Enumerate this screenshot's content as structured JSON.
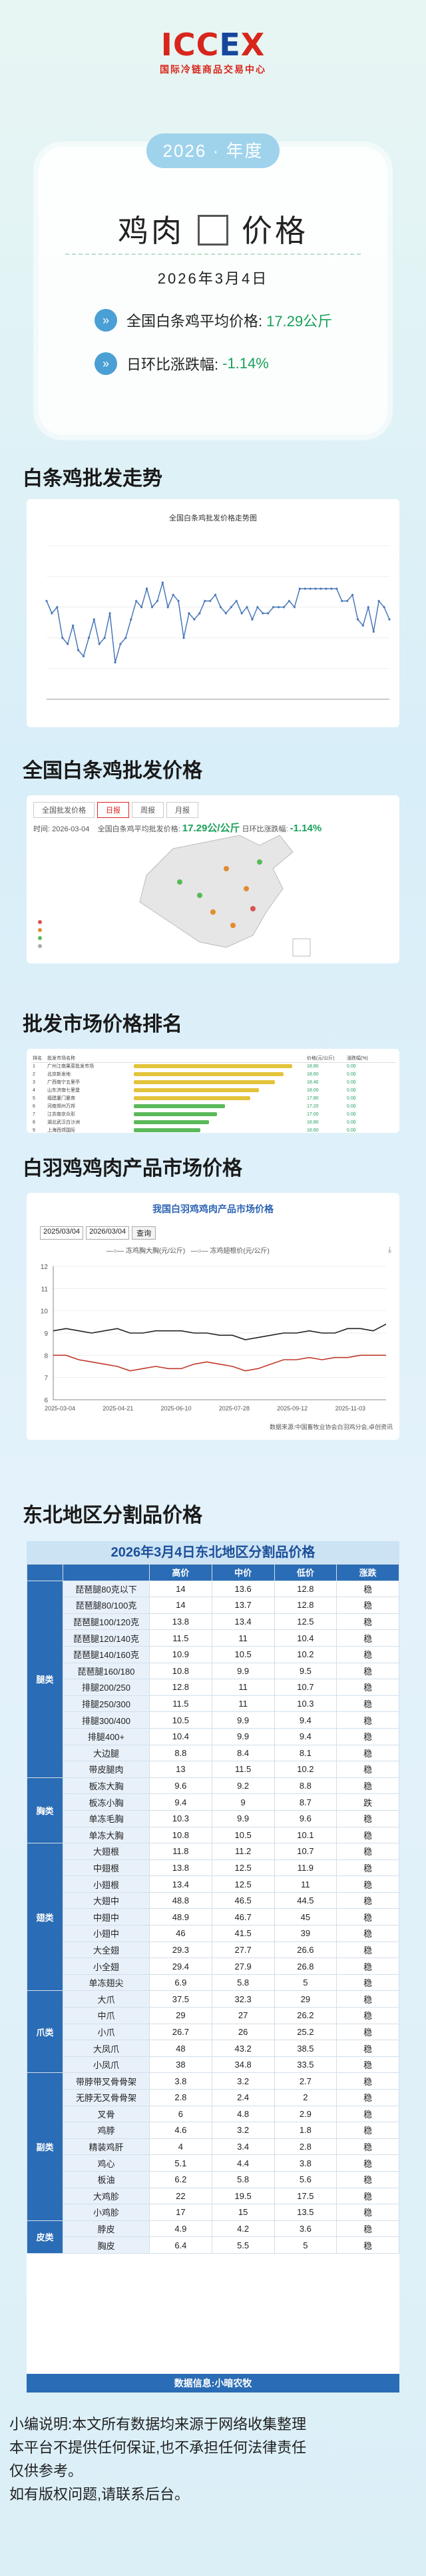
{
  "logo": {
    "mark_a": "ICC",
    "mark_b": "E",
    "mark_c": "X",
    "sub": "国际冷链商品交易中心"
  },
  "hero": {
    "year_label": "2026 · 年度",
    "title_left": "鸡肉",
    "title_right": "价格",
    "date": "2026年3月4日",
    "row1_label": "全国白条鸡平均价格:",
    "row1_value": "17.29公斤",
    "row2_label": "日环比涨跌幅:",
    "row2_value": "-1.14%"
  },
  "sections": {
    "s1": "白条鸡批发走势",
    "s2": "全国白条鸡批发价格",
    "s3": "批发市场价格排名",
    "s4": "白羽鸡鸡肉产品市场价格",
    "s5": "东北地区分割品价格"
  },
  "chart1": {
    "title": "全国白条鸡批发价格走势图",
    "chart_data": {
      "type": "line",
      "title": "全国白条鸡批发价格走势图",
      "values": [
        17.6,
        17.4,
        17.5,
        17.0,
        16.9,
        17.2,
        16.8,
        16.7,
        17.0,
        17.3,
        16.9,
        17.0,
        17.4,
        16.6,
        16.9,
        17.0,
        17.3,
        17.6,
        17.5,
        17.8,
        17.5,
        17.6,
        17.9,
        17.5,
        17.7,
        17.6,
        17.0,
        17.4,
        17.3,
        17.4,
        17.6,
        17.6,
        17.7,
        17.5,
        17.4,
        17.5,
        17.6,
        17.4,
        17.5,
        17.3,
        17.5,
        17.4,
        17.4,
        17.5,
        17.5,
        17.5,
        17.6,
        17.5,
        17.8,
        17.8,
        17.8,
        17.8,
        17.8,
        17.8,
        17.8,
        17.8,
        17.6,
        17.6,
        17.7,
        17.3,
        17.2,
        17.5,
        17.1,
        17.6,
        17.5,
        17.3
      ]
    }
  },
  "map": {
    "tabs": [
      "全国批发价格",
      "日报",
      "周报",
      "月报"
    ],
    "date_label": "时间:",
    "date": "2026-03-04",
    "avg_label": "全国白条鸡平均批发价格:",
    "avg": "17.29公/公斤",
    "chg_label": "日环比涨跌幅:",
    "chg": "-1.14%"
  },
  "rank": {
    "headers": [
      "排名",
      "批发市场名称",
      "",
      "价格(元/公斤)",
      "涨跌幅(%)"
    ],
    "rows": [
      [
        "1",
        "广州江南果菜批发市场",
        "18.80",
        "0.00"
      ],
      [
        "2",
        "北京新发地",
        "18.60",
        "0.00"
      ],
      [
        "3",
        "广西南宁五里亭",
        "18.40",
        "0.00"
      ],
      [
        "4",
        "山东济南七里堡",
        "18.00",
        "0.00"
      ],
      [
        "5",
        "福建厦门夏商",
        "17.80",
        "0.00"
      ],
      [
        "6",
        "河南郑州万邦",
        "17.20",
        "0.00"
      ],
      [
        "7",
        "江苏南京众彩",
        "17.00",
        "0.00"
      ],
      [
        "8",
        "湖北武汉白沙洲",
        "16.80",
        "0.00"
      ],
      [
        "9",
        "上海西郊国际",
        "16.60",
        "0.00"
      ]
    ]
  },
  "chart2": {
    "title": "我国白羽鸡鸡肉产品市场价格",
    "date_from": "2025/03/04",
    "date_to": "2026/03/04",
    "query": "查询",
    "legend_a": "冻鸡胸大胸(元/公斤)",
    "legend_b": "冻鸡翅根价(元/公斤)",
    "source": "数据来源:中国畜牧业协会白羽鸡分会,卓创资讯",
    "chart_data": {
      "type": "line",
      "x_ticks": [
        "2025-03-04",
        "2025-04-21",
        "2025-06-10",
        "2025-07-28",
        "2025-09-12",
        "2025-11-03"
      ],
      "ylim": [
        6,
        12
      ],
      "y_ticks": [
        "6",
        "7",
        "8",
        "9",
        "10",
        "11",
        "12"
      ],
      "series": [
        {
          "name": "冻鸡胸大胸(元/公斤)",
          "values": [
            9.1,
            9.2,
            9.1,
            9.0,
            9.1,
            9.2,
            9.0,
            9.0,
            9.1,
            9.1,
            9.1,
            9.0,
            9.0,
            8.9,
            8.9,
            8.7,
            8.8,
            8.9,
            9.0,
            9.0,
            9.1,
            9.0,
            9.0,
            9.2,
            9.2,
            9.1,
            9.4
          ]
        },
        {
          "name": "冻鸡翅根价(元/公斤)",
          "values": [
            8.0,
            8.0,
            7.8,
            7.7,
            7.6,
            7.5,
            7.3,
            7.4,
            7.5,
            7.4,
            7.4,
            7.6,
            7.7,
            7.6,
            7.5,
            7.3,
            7.4,
            7.6,
            7.8,
            7.8,
            7.9,
            7.8,
            7.9,
            7.9,
            8.0,
            8.0,
            8.0
          ]
        }
      ]
    }
  },
  "table": {
    "title": "2026年3月4日东北地区分割品价格",
    "headers": [
      "",
      "",
      "高价",
      "中价",
      "低价",
      "涨跌"
    ],
    "groups": [
      {
        "cat": "腿类",
        "rows": [
          [
            "琵琶腿80克以下",
            "14",
            "13.6",
            "12.8",
            "稳"
          ],
          [
            "琵琶腿80/100克",
            "14",
            "13.7",
            "12.8",
            "稳"
          ],
          [
            "琵琶腿100/120克",
            "13.8",
            "13.4",
            "12.5",
            "稳"
          ],
          [
            "琵琶腿120/140克",
            "11.5",
            "11",
            "10.4",
            "稳"
          ],
          [
            "琵琶腿140/160克",
            "10.9",
            "10.5",
            "10.2",
            "稳"
          ],
          [
            "琵琶腿160/180",
            "10.8",
            "9.9",
            "9.5",
            "稳"
          ],
          [
            "排腿200/250",
            "12.8",
            "11",
            "10.7",
            "稳"
          ],
          [
            "排腿250/300",
            "11.5",
            "11",
            "10.3",
            "稳"
          ],
          [
            "排腿300/400",
            "10.5",
            "9.9",
            "9.4",
            "稳"
          ],
          [
            "排腿400+",
            "10.4",
            "9.9",
            "9.4",
            "稳"
          ],
          [
            "大边腿",
            "8.8",
            "8.4",
            "8.1",
            "稳"
          ],
          [
            "带皮腿肉",
            "13",
            "11.5",
            "10.2",
            "稳"
          ]
        ]
      },
      {
        "cat": "胸类",
        "rows": [
          [
            "板冻大胸",
            "9.6",
            "9.2",
            "8.8",
            "稳"
          ],
          [
            "板冻小胸",
            "9.4",
            "9",
            "8.7",
            "跌"
          ],
          [
            "单冻毛胸",
            "10.3",
            "9.9",
            "9.6",
            "稳"
          ],
          [
            "单冻大胸",
            "10.8",
            "10.5",
            "10.1",
            "稳"
          ]
        ]
      },
      {
        "cat": "翅类",
        "rows": [
          [
            "大翅根",
            "11.8",
            "11.2",
            "10.7",
            "稳"
          ],
          [
            "中翅根",
            "13.8",
            "12.5",
            "11.9",
            "稳"
          ],
          [
            "小翅根",
            "13.4",
            "12.5",
            "11",
            "稳"
          ],
          [
            "大翅中",
            "48.8",
            "46.5",
            "44.5",
            "稳"
          ],
          [
            "中翅中",
            "48.9",
            "46.7",
            "45",
            "稳"
          ],
          [
            "小翅中",
            "46",
            "41.5",
            "39",
            "稳"
          ],
          [
            "大全翅",
            "29.3",
            "27.7",
            "26.6",
            "稳"
          ],
          [
            "小全翅",
            "29.4",
            "27.9",
            "26.8",
            "稳"
          ],
          [
            "单冻翅尖",
            "6.9",
            "5.8",
            "5",
            "稳"
          ]
        ]
      },
      {
        "cat": "爪类",
        "rows": [
          [
            "大爪",
            "37.5",
            "32.3",
            "29",
            "稳"
          ],
          [
            "中爪",
            "29",
            "27",
            "26.2",
            "稳"
          ],
          [
            "小爪",
            "26.7",
            "26",
            "25.2",
            "稳"
          ],
          [
            "大凤爪",
            "48",
            "43.2",
            "38.5",
            "稳"
          ],
          [
            "小凤爪",
            "38",
            "34.8",
            "33.5",
            "稳"
          ]
        ]
      },
      {
        "cat": "副类",
        "rows": [
          [
            "带脖带叉骨骨架",
            "3.8",
            "3.2",
            "2.7",
            "稳"
          ],
          [
            "无脖无叉骨骨架",
            "2.8",
            "2.4",
            "2",
            "稳"
          ],
          [
            "叉骨",
            "6",
            "4.8",
            "2.9",
            "稳"
          ],
          [
            "鸡脖",
            "4.6",
            "3.2",
            "1.8",
            "稳"
          ],
          [
            "精装鸡肝",
            "4",
            "3.4",
            "2.8",
            "稳"
          ],
          [
            "鸡心",
            "5.1",
            "4.4",
            "3.8",
            "稳"
          ],
          [
            "板油",
            "6.2",
            "5.8",
            "5.6",
            "稳"
          ],
          [
            "大鸡胗",
            "22",
            "19.5",
            "17.5",
            "稳"
          ],
          [
            "小鸡胗",
            "17",
            "15",
            "13.5",
            "稳"
          ]
        ]
      },
      {
        "cat": "皮类",
        "rows": [
          [
            "脖皮",
            "4.9",
            "4.2",
            "3.6",
            "稳"
          ],
          [
            "胸皮",
            "6.4",
            "5.5",
            "5",
            "稳"
          ]
        ]
      }
    ],
    "footer": "数据信息:小暗农牧"
  },
  "note": {
    "l1": "小编说明:本文所有数据均来源于网络收集整理",
    "l2": "本平台不提供任何保证,也不承担任何法律责任",
    "l3": "仅供参考。",
    "l4": "如有版权问题,请联系后台。"
  }
}
